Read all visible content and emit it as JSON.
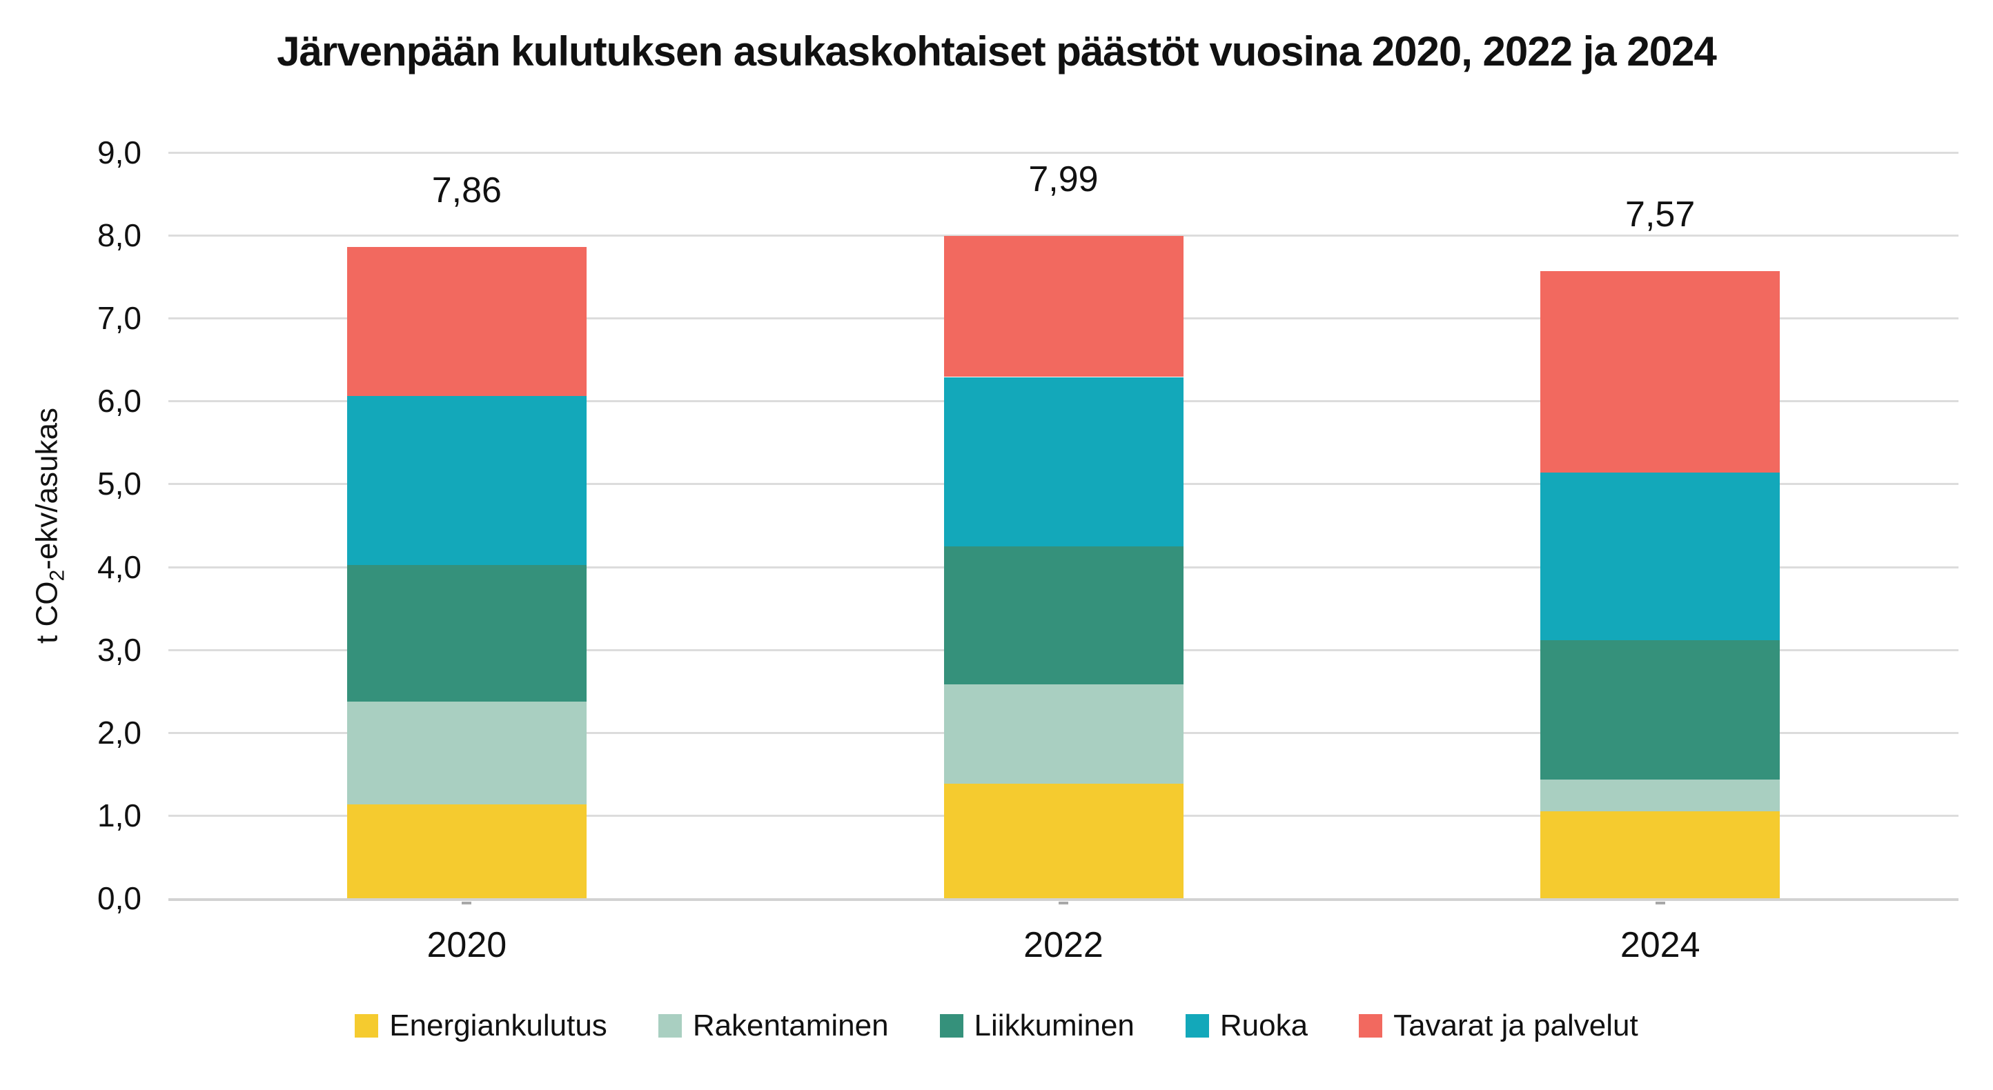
{
  "chart_data": {
    "type": "bar",
    "stacked": true,
    "title": "Järvenpään kulutuksen asukaskohtaiset päästöt vuosina 2020, 2022 ja 2024",
    "ylabel": "t CO2-ekv/asukas",
    "y_axis_title_parts": {
      "pre": "t CO",
      "sub": "2",
      "post": "-ekv/asukas"
    },
    "categories": [
      "2020",
      "2022",
      "2024"
    ],
    "series": [
      {
        "name": "Energiankulutus",
        "color": "#F5CB2F",
        "values": [
          1.13,
          1.38,
          1.05
        ]
      },
      {
        "name": "Rakentaminen",
        "color": "#A9CFC1",
        "values": [
          1.24,
          1.2,
          0.38
        ]
      },
      {
        "name": "Liikkuminen",
        "color": "#35917B",
        "values": [
          1.65,
          1.67,
          1.68
        ]
      },
      {
        "name": "Ruoka",
        "color": "#13A8BA",
        "values": [
          2.04,
          2.04,
          2.03
        ]
      },
      {
        "name": "Tavarat ja palvelut",
        "color": "#F2695F",
        "values": [
          1.8,
          1.7,
          2.43
        ]
      }
    ],
    "totals": [
      7.86,
      7.99,
      7.57
    ],
    "totals_labels": [
      "7,86",
      "7,99",
      "7,57"
    ],
    "ylim": [
      0,
      9
    ],
    "ytick_step": 1,
    "ytick_labels": [
      "0,0",
      "1,0",
      "2,0",
      "3,0",
      "4,0",
      "5,0",
      "6,0",
      "7,0",
      "8,0",
      "9,0"
    ],
    "grid": true,
    "gridline_color": "#dcdcdc",
    "legend_position": "bottom"
  },
  "layout_note": ""
}
